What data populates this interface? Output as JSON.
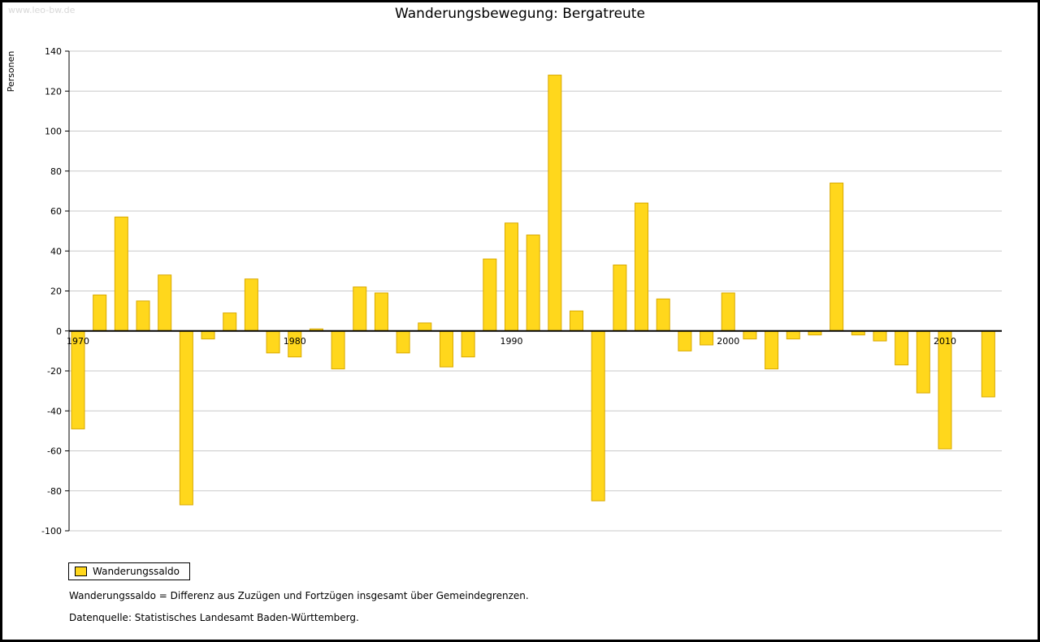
{
  "watermark": "www.leo-bw.de",
  "title": "Wanderungsbewegung: Bergatreute",
  "y_axis_label": "Personen",
  "legend": {
    "label": "Wanderungssaldo"
  },
  "footnotes": {
    "definition": "Wanderungssaldo = Differenz aus Zuzügen und Fortzügen insgesamt über Gemeindegrenzen.",
    "source": "Datenquelle: Statistisches Landesamt Baden-Württemberg."
  },
  "chart_data": {
    "type": "bar",
    "title": "Wanderungsbewegung: Bergatreute",
    "xlabel": "",
    "ylabel": "Personen",
    "ylim": [
      -100,
      140
    ],
    "ytick_step": 20,
    "grid": true,
    "legend_position": "bottom-left",
    "series_name": "Wanderungssaldo",
    "years": [
      1970,
      1971,
      1972,
      1973,
      1974,
      1975,
      1976,
      1977,
      1978,
      1979,
      1980,
      1981,
      1982,
      1983,
      1984,
      1985,
      1986,
      1987,
      1988,
      1989,
      1990,
      1991,
      1992,
      1993,
      1994,
      1995,
      1996,
      1997,
      1998,
      1999,
      2000,
      2001,
      2002,
      2003,
      2004,
      2005,
      2006,
      2007,
      2008,
      2009,
      2010,
      2011,
      2012
    ],
    "values": [
      -49,
      18,
      57,
      15,
      28,
      -87,
      -4,
      9,
      26,
      -11,
      -13,
      1,
      -19,
      22,
      19,
      -11,
      4,
      -18,
      -13,
      36,
      54,
      48,
      128,
      10,
      -85,
      33,
      64,
      16,
      -10,
      -7,
      19,
      -4,
      -19,
      -4,
      -2,
      74,
      -2,
      -5,
      -17,
      -31,
      -59,
      0,
      -33
    ],
    "xticks": [
      1970,
      1980,
      1990,
      2000,
      2010
    ],
    "colors": {
      "bar_fill": "#FFD71C",
      "bar_stroke": "#D9A900",
      "grid": "#c9c9c9",
      "axis": "#000000",
      "watermark": "#d8d8d8"
    }
  }
}
